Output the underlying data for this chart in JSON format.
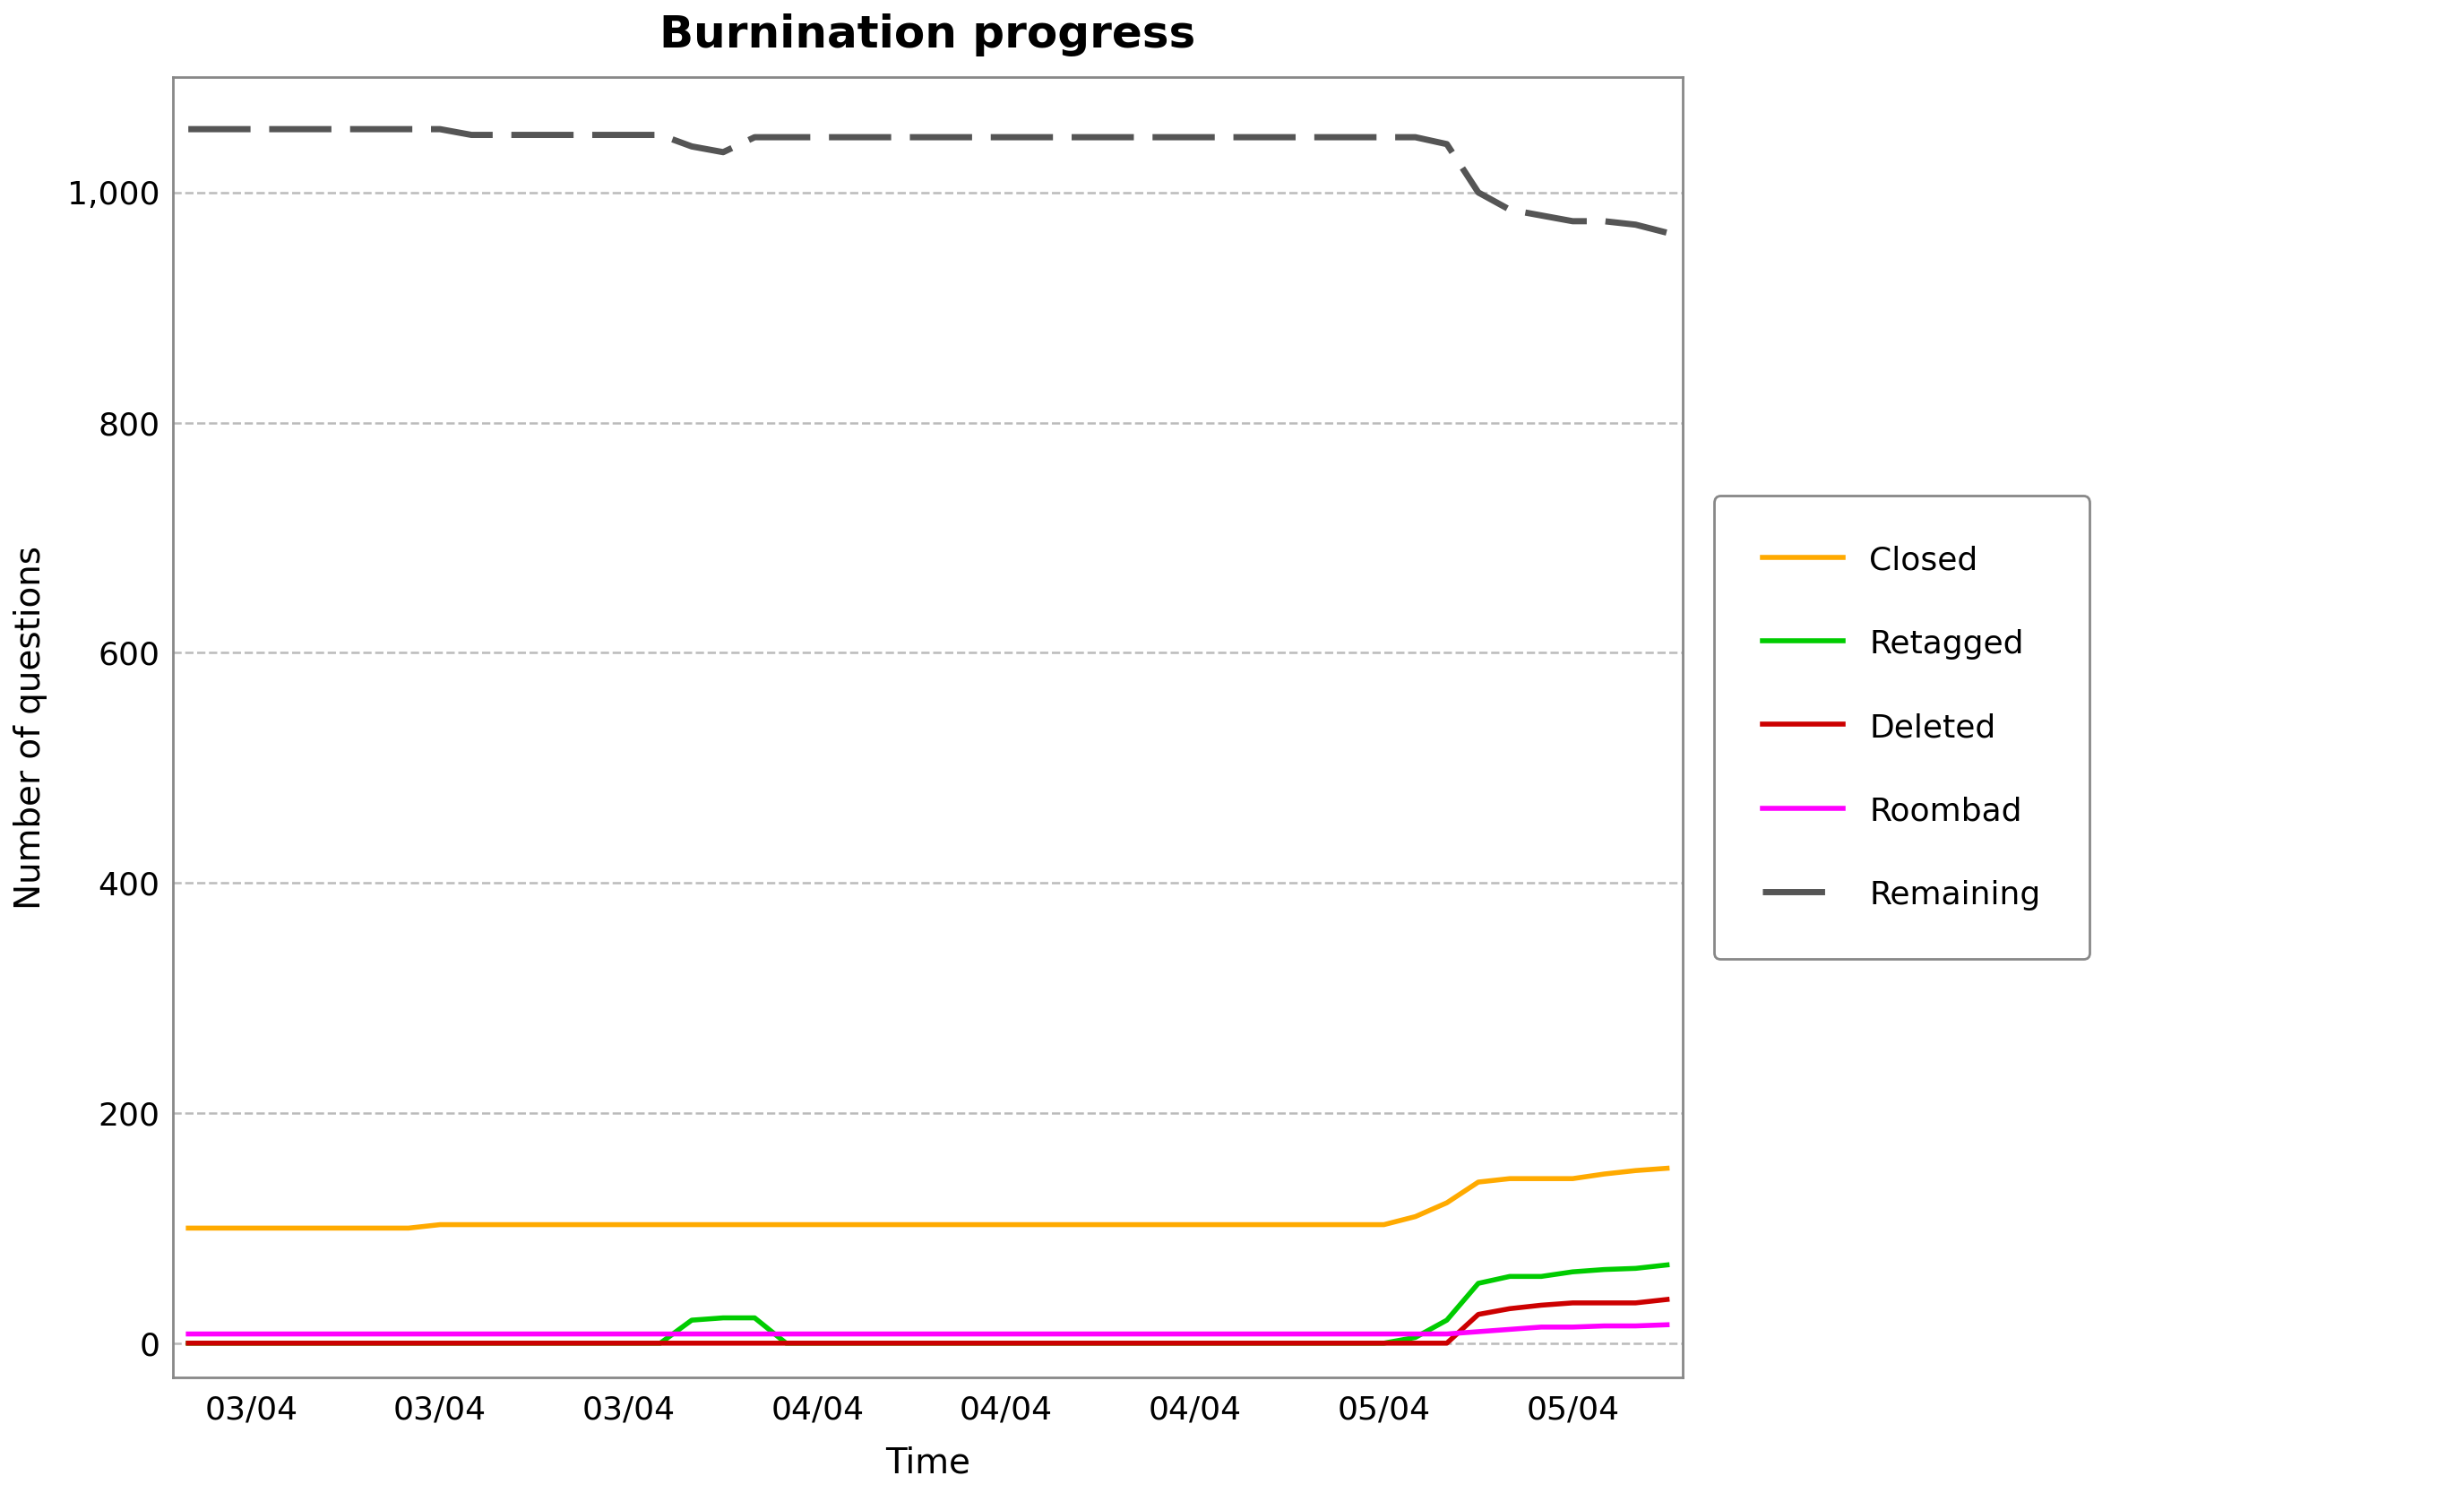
{
  "title": "Burnination progress",
  "xlabel": "Time",
  "ylabel": "Number of questions",
  "background_color": "#ffffff",
  "plot_bg_color": "#ffffff",
  "grid_color": "#bbbbbb",
  "yticks": [
    0,
    200,
    400,
    600,
    800,
    1000
  ],
  "ylim": [
    -30,
    1100
  ],
  "series": {
    "Closed": {
      "color": "#ffaa00",
      "linewidth": 4.0,
      "data_x": [
        0,
        1,
        2,
        3,
        4,
        5,
        6,
        7,
        8,
        9,
        10,
        11,
        12,
        13,
        14,
        15,
        16,
        17,
        18,
        19,
        20,
        21,
        22,
        23,
        24,
        25,
        26,
        27,
        28,
        29,
        30,
        31,
        32,
        33,
        34,
        35,
        36,
        37,
        38,
        39,
        40,
        41,
        42,
        43,
        44,
        45,
        46,
        47
      ],
      "data_y": [
        100,
        100,
        100,
        100,
        100,
        100,
        100,
        100,
        103,
        103,
        103,
        103,
        103,
        103,
        103,
        103,
        103,
        103,
        103,
        103,
        103,
        103,
        103,
        103,
        103,
        103,
        103,
        103,
        103,
        103,
        103,
        103,
        103,
        103,
        103,
        103,
        103,
        103,
        103,
        110,
        122,
        140,
        143,
        143,
        143,
        147,
        150,
        152
      ]
    },
    "Retagged": {
      "color": "#00cc00",
      "linewidth": 4.0,
      "data_x": [
        0,
        1,
        2,
        3,
        4,
        5,
        6,
        7,
        8,
        9,
        10,
        11,
        12,
        13,
        14,
        15,
        16,
        17,
        18,
        19,
        20,
        21,
        22,
        23,
        24,
        25,
        26,
        27,
        28,
        29,
        30,
        31,
        32,
        33,
        34,
        35,
        36,
        37,
        38,
        39,
        40,
        41,
        42,
        43,
        44,
        45,
        46,
        47
      ],
      "data_y": [
        0,
        0,
        0,
        0,
        0,
        0,
        0,
        0,
        0,
        0,
        0,
        0,
        0,
        0,
        0,
        0,
        20,
        22,
        22,
        0,
        0,
        0,
        0,
        0,
        0,
        0,
        0,
        0,
        0,
        0,
        0,
        0,
        0,
        0,
        0,
        0,
        0,
        0,
        0,
        5,
        20,
        52,
        58,
        58,
        62,
        64,
        65,
        68
      ]
    },
    "Deleted": {
      "color": "#cc0000",
      "linewidth": 4.0,
      "data_x": [
        0,
        1,
        2,
        3,
        4,
        5,
        6,
        7,
        8,
        9,
        10,
        11,
        12,
        13,
        14,
        15,
        16,
        17,
        18,
        19,
        20,
        21,
        22,
        23,
        24,
        25,
        26,
        27,
        28,
        29,
        30,
        31,
        32,
        33,
        34,
        35,
        36,
        37,
        38,
        39,
        40,
        41,
        42,
        43,
        44,
        45,
        46,
        47
      ],
      "data_y": [
        0,
        0,
        0,
        0,
        0,
        0,
        0,
        0,
        0,
        0,
        0,
        0,
        0,
        0,
        0,
        0,
        0,
        0,
        0,
        0,
        0,
        0,
        0,
        0,
        0,
        0,
        0,
        0,
        0,
        0,
        0,
        0,
        0,
        0,
        0,
        0,
        0,
        0,
        0,
        0,
        0,
        25,
        30,
        33,
        35,
        35,
        35,
        38
      ]
    },
    "Roombad": {
      "color": "#ff00ff",
      "linewidth": 4.0,
      "data_x": [
        0,
        1,
        2,
        3,
        4,
        5,
        6,
        7,
        8,
        9,
        10,
        11,
        12,
        13,
        14,
        15,
        16,
        17,
        18,
        19,
        20,
        21,
        22,
        23,
        24,
        25,
        26,
        27,
        28,
        29,
        30,
        31,
        32,
        33,
        34,
        35,
        36,
        37,
        38,
        39,
        40,
        41,
        42,
        43,
        44,
        45,
        46,
        47
      ],
      "data_y": [
        8,
        8,
        8,
        8,
        8,
        8,
        8,
        8,
        8,
        8,
        8,
        8,
        8,
        8,
        8,
        8,
        8,
        8,
        8,
        8,
        8,
        8,
        8,
        8,
        8,
        8,
        8,
        8,
        8,
        8,
        8,
        8,
        8,
        8,
        8,
        8,
        8,
        8,
        8,
        8,
        8,
        10,
        12,
        14,
        14,
        15,
        15,
        16
      ]
    },
    "Remaining": {
      "color": "#555555",
      "linewidth": 5.0,
      "dashes": [
        10,
        3
      ],
      "data_x": [
        0,
        1,
        2,
        3,
        4,
        5,
        6,
        7,
        8,
        9,
        10,
        11,
        12,
        13,
        14,
        15,
        16,
        17,
        18,
        19,
        20,
        21,
        22,
        23,
        24,
        25,
        26,
        27,
        28,
        29,
        30,
        31,
        32,
        33,
        34,
        35,
        36,
        37,
        38,
        39,
        40,
        41,
        42,
        43,
        44,
        45,
        46,
        47
      ],
      "data_y": [
        1055,
        1055,
        1055,
        1055,
        1055,
        1055,
        1055,
        1055,
        1055,
        1050,
        1050,
        1050,
        1050,
        1050,
        1050,
        1050,
        1040,
        1035,
        1048,
        1048,
        1048,
        1048,
        1048,
        1048,
        1048,
        1048,
        1048,
        1048,
        1048,
        1048,
        1048,
        1048,
        1048,
        1048,
        1048,
        1048,
        1048,
        1048,
        1048,
        1048,
        1042,
        1000,
        985,
        980,
        975,
        975,
        972,
        965
      ]
    }
  },
  "xtick_positions": [
    2,
    8,
    14,
    20,
    26,
    32,
    38,
    44
  ],
  "xtick_labels": [
    "03/04",
    "03/04",
    "03/04",
    "04/04",
    "04/04",
    "04/04",
    "05/04",
    "05/04"
  ],
  "legend_order": [
    "Closed",
    "Retagged",
    "Deleted",
    "Roombad",
    "Remaining"
  ],
  "title_fontsize": 36,
  "axis_label_fontsize": 28,
  "tick_fontsize": 26,
  "legend_fontsize": 26
}
